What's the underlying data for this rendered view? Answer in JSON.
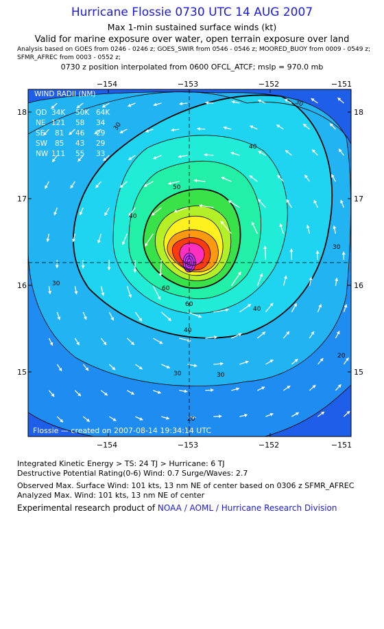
{
  "header": {
    "title": "Hurricane Flossie 0730 UTC 14 AUG 2007",
    "subtitle": "Max 1-min sustained surface winds (kt)",
    "validity": "Valid for marine exposure over water, open terrain exposure over land",
    "analysis_line1": "Analysis based on  GOES from 0246 - 0246 z;  GOES_SWIR from 0546 - 0546 z;  MOORED_BUOY from 0009 - 0549 z;",
    "analysis_line2": "SFMR_AFREC from 0003 - 0552 z;",
    "position_line": "0730 z position interpolated from 0600 OFCL_ATCF; mslp = 970.0 mb"
  },
  "map": {
    "lon_ticks": [
      "−154",
      "−153",
      "−152",
      "−151"
    ],
    "lat_ticks": [
      "18",
      "17",
      "16",
      "15"
    ],
    "lon_range": [
      -154.85,
      -150.85
    ],
    "lat_range": [
      14.25,
      18.27
    ],
    "center": {
      "lon": -153.0,
      "lat": 16.25
    },
    "contour_labels": [
      "30",
      "30",
      "30",
      "30",
      "30",
      "30",
      "40",
      "40",
      "40",
      "40",
      "50",
      "60",
      "60",
      "20",
      "20"
    ],
    "wind_radii": {
      "title": "WIND RADII (NM)",
      "header": [
        "QD",
        "34K",
        "50K",
        "64K"
      ],
      "rows": [
        {
          "q": "NE",
          "r34": "121",
          "r50": "58",
          "r64": "34"
        },
        {
          "q": "SE",
          "r34": "81",
          "r50": "46",
          "r64": "29"
        },
        {
          "q": "SW",
          "r34": "85",
          "r50": "43",
          "r64": "29"
        },
        {
          "q": "NW",
          "r34": "111",
          "r50": "55",
          "r64": "33"
        }
      ]
    },
    "credit": "Flossie — created on 2007-08-14 19:34:14 UTC",
    "colors": {
      "deep": "#1e5ee8",
      "mid": "#1e8cf0",
      "light": "#22b4f2",
      "cyan": "#1ed4f0",
      "aqua": "#20ecd8",
      "seafoam": "#22f0a6",
      "green": "#3ae24a",
      "lime": "#b4f028",
      "yellow": "#fff020",
      "orange": "#ff9a10",
      "red": "#ff3a10",
      "magenta": "#ff30c0",
      "violet": "#d030ff"
    }
  },
  "footer": {
    "ike": "Integrated Kinetic Energy > TS: 24 TJ   > Hurricane: 6 TJ",
    "dpr": "Destructive Potential Rating(0-6)   Wind: 0.7 Surge/Waves: 2.7",
    "obs": "Observed Max. Surface Wind: 101 kts, 13 nm NE of center based on 0306 z SFMR_AFREC",
    "analyzed": "Analyzed Max. Wind: 101 kts, 13 nm NE of center",
    "product_prefix": "Experimental research product of ",
    "product_org": "NOAA / AOML / Hurricane Research Division"
  }
}
